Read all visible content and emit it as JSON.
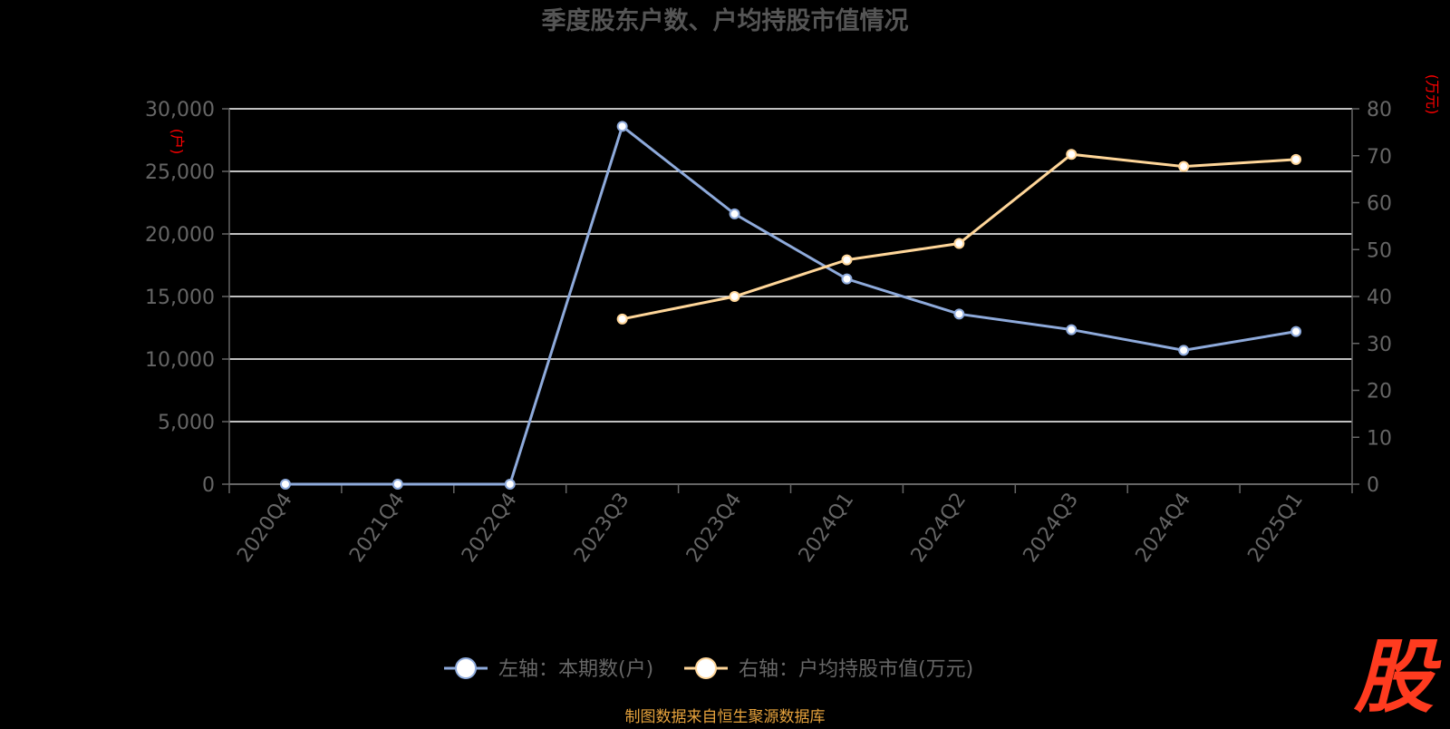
{
  "chart_data": {
    "type": "line",
    "title": "季度股东户数、户均持股市值情况",
    "categories": [
      "2020Q4",
      "2021Q4",
      "2022Q4",
      "2023Q3",
      "2023Q4",
      "2024Q1",
      "2024Q2",
      "2024Q3",
      "2024Q4",
      "2025Q1"
    ],
    "left_axis": {
      "unit_label": "(户)",
      "ylim": [
        0,
        30000
      ],
      "ticks": [
        0,
        5000,
        10000,
        15000,
        20000,
        25000,
        30000
      ],
      "tick_labels": [
        "0",
        "5,000",
        "10,000",
        "15,000",
        "20,000",
        "25,000",
        "30,000"
      ]
    },
    "right_axis": {
      "unit_label": "(万元)",
      "ylim": [
        0,
        80
      ],
      "ticks": [
        0,
        10,
        20,
        30,
        40,
        50,
        60,
        70,
        80
      ],
      "tick_labels": [
        "0",
        "10",
        "20",
        "30",
        "40",
        "50",
        "60",
        "70",
        "80"
      ]
    },
    "series": [
      {
        "name": "左轴：本期数(户)",
        "axis": "left",
        "color": "#8eaadb",
        "marker_fill": "#ffffff",
        "values": [
          2,
          2,
          2,
          28600,
          21600,
          16400,
          13600,
          12350,
          10700,
          12200
        ]
      },
      {
        "name": "右轴：户均持股市值(万元)",
        "axis": "right",
        "color": "#ffd699",
        "marker_fill": "#ffffff",
        "values": [
          null,
          null,
          null,
          35.2,
          40.0,
          47.8,
          51.3,
          70.3,
          67.7,
          69.2
        ]
      }
    ],
    "grid": true,
    "legend_position": "bottom-center",
    "colors": {
      "background": "#000000",
      "grid": "#ffffff",
      "axis_text": "#666666",
      "title": "#555555",
      "unit_label": "#ff0000",
      "source": "#e6a23c",
      "logo": "#ff3b1f"
    }
  },
  "footer": {
    "source_text": "制图数据来自恒生聚源数据库"
  },
  "logo": {
    "glyph": "股"
  }
}
